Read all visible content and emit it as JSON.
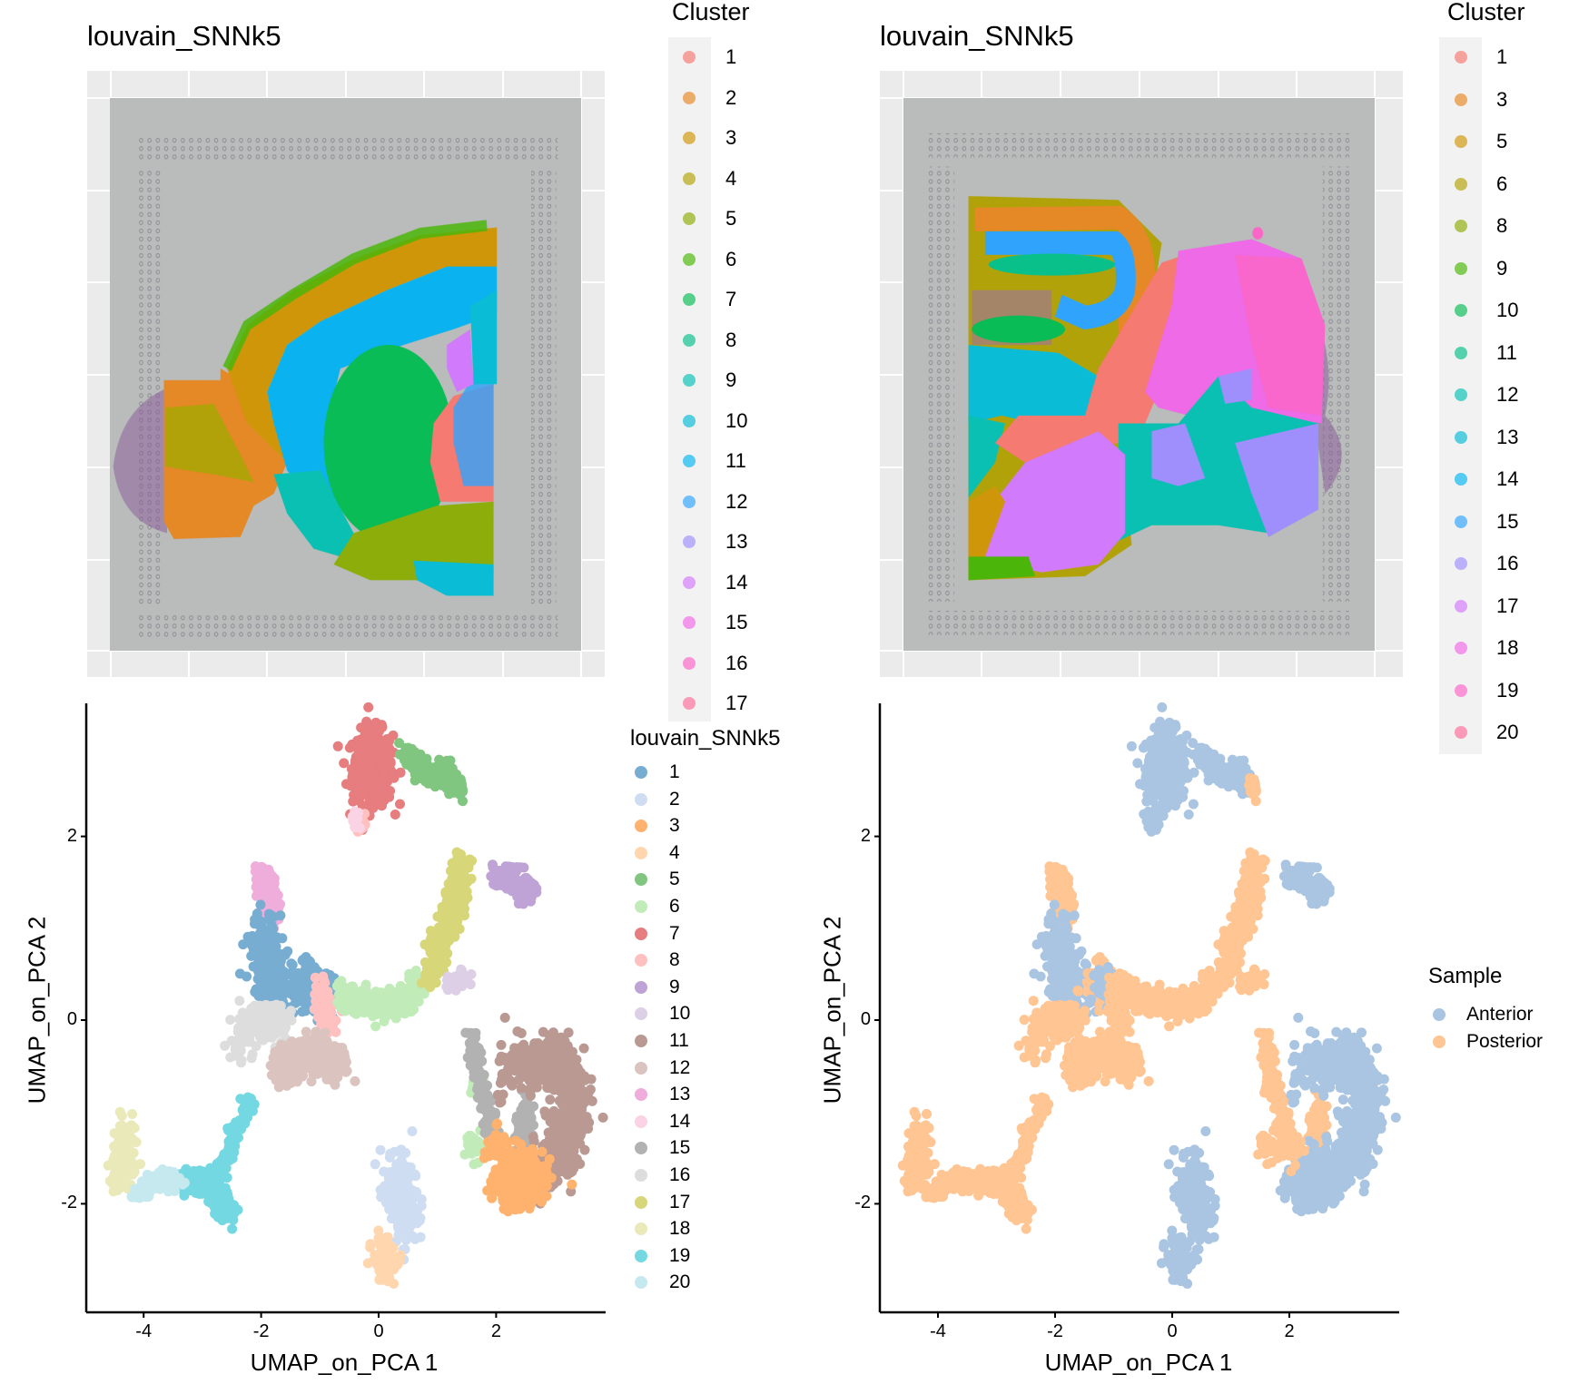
{
  "spatial": [
    {
      "title": "louvain_SNNk5",
      "legend_title": "Cluster",
      "legend_labels": [
        "1",
        "2",
        "3",
        "4",
        "5",
        "6",
        "7",
        "8",
        "9",
        "10",
        "11",
        "12",
        "13",
        "14",
        "15",
        "16",
        "17"
      ]
    },
    {
      "title": "louvain_SNNk5",
      "legend_title": "Cluster",
      "legend_labels": [
        "1",
        "3",
        "5",
        "6",
        "8",
        "9",
        "10",
        "11",
        "12",
        "13",
        "14",
        "15",
        "16",
        "17",
        "18",
        "19",
        "20"
      ]
    }
  ],
  "spatial_palette": [
    "#F8766D",
    "#E7851E",
    "#D09400",
    "#B2A100",
    "#89AC00",
    "#45B500",
    "#00BC51",
    "#00C087",
    "#00C0B2",
    "#00BCD6",
    "#00B3F2",
    "#29A3FF",
    "#9C8DFF",
    "#D277FF",
    "#F166E8",
    "#FF61C7",
    "#FF6A98"
  ],
  "chart_data": [
    {
      "type": "scatter",
      "xlabel": "UMAP_on_PCA 1",
      "ylabel": "UMAP_on_PCA 2",
      "xlim": [
        -4.98,
        3.86
      ],
      "ylim": [
        -3.18,
        3.45
      ],
      "xticks": [
        "-4",
        "-2",
        "0",
        "2"
      ],
      "xtick_values": [
        -4,
        -2,
        0,
        2
      ],
      "yticks": [
        "2",
        "0",
        "-2"
      ],
      "ytick_values": [
        2,
        0,
        -2
      ],
      "color_by": "cluster",
      "legend_title": "louvain_SNNk5",
      "legend_placement": "right",
      "legend_labels": [
        "1",
        "2",
        "3",
        "4",
        "5",
        "6",
        "7",
        "8",
        "9",
        "10",
        "11",
        "12",
        "13",
        "14",
        "15",
        "16",
        "17",
        "18",
        "19",
        "20"
      ],
      "colors": [
        "#1f77b4",
        "#aec7e8",
        "#ff7f0e",
        "#ffbb78",
        "#2ca02c",
        "#98df8a",
        "#d62728",
        "#ff9896",
        "#9467bd",
        "#c5b0d5",
        "#8c564b",
        "#c49c94",
        "#e377c2",
        "#f7b6d2",
        "#7f7f7f",
        "#c7c7c7",
        "#bcbd22",
        "#dbdb8d",
        "#17becf",
        "#9edae5"
      ]
    },
    {
      "type": "scatter",
      "xlabel": "UMAP_on_PCA 1",
      "ylabel": "UMAP_on_PCA 2",
      "xlim": [
        -4.98,
        3.86
      ],
      "ylim": [
        -3.18,
        3.45
      ],
      "xticks": [
        "-4",
        "-2",
        "0",
        "2"
      ],
      "xtick_values": [
        -4,
        -2,
        0,
        2
      ],
      "yticks": [
        "2",
        "0",
        "-2"
      ],
      "ytick_values": [
        2,
        0,
        -2
      ],
      "color_by": "sample",
      "legend_title": "Sample",
      "legend_placement": "right",
      "legend_labels": [
        "Anterior",
        "Posterior"
      ],
      "colors": [
        "#729ECE",
        "#FF9E4A"
      ]
    }
  ],
  "clusters": [
    {
      "cluster": 7,
      "sample": "Anterior",
      "path": [
        [
          -0.1,
          2.75
        ]
      ],
      "spread": [
        0.17,
        0.2
      ],
      "n": 450
    },
    {
      "cluster": 5,
      "sample": "Anterior",
      "path": [
        [
          0.45,
          2.95
        ],
        [
          0.7,
          2.7
        ],
        [
          1.1,
          2.7
        ],
        [
          1.35,
          2.55
        ]
      ],
      "spread": [
        0.06,
        0.06
      ],
      "n": 220
    },
    {
      "cluster": 5,
      "sample": "Posterior",
      "path": [
        [
          1.35,
          2.6
        ],
        [
          1.4,
          2.45
        ]
      ],
      "spread": [
        0.03,
        0.04
      ],
      "n": 25
    },
    {
      "cluster": 8,
      "sample": "Anterior",
      "path": [
        [
          -0.3,
          2.15
        ]
      ],
      "spread": [
        0.05,
        0.05
      ],
      "n": 20
    },
    {
      "cluster": 14,
      "sample": "Anterior",
      "path": [
        [
          -0.4,
          2.2
        ]
      ],
      "spread": [
        0.04,
        0.05
      ],
      "n": 15
    },
    {
      "cluster": 13,
      "sample": "Posterior",
      "path": [
        [
          -2.0,
          1.65
        ],
        [
          -1.85,
          1.3
        ],
        [
          -1.8,
          1.1
        ]
      ],
      "spread": [
        0.07,
        0.07
      ],
      "n": 150
    },
    {
      "cluster": 1,
      "sample": "Anterior",
      "path": [
        [
          -1.95,
          0.95
        ],
        [
          -1.9,
          0.5
        ],
        [
          -1.6,
          0.3
        ]
      ],
      "spread": [
        0.15,
        0.15
      ],
      "n": 250
    },
    {
      "cluster": 1,
      "sample": "Posterior",
      "path": [
        [
          -1.4,
          0.5
        ],
        [
          -1.1,
          0.3
        ],
        [
          -0.7,
          0.3
        ]
      ],
      "spread": [
        0.12,
        0.12
      ],
      "n": 150
    },
    {
      "cluster": 1,
      "sample": "Anterior",
      "path": [
        [
          -1.15,
          0.4
        ]
      ],
      "spread": [
        0.1,
        0.1
      ],
      "n": 60
    },
    {
      "cluster": 16,
      "sample": "Posterior",
      "path": [
        [
          -2.4,
          -0.25
        ],
        [
          -2.0,
          0.0
        ],
        [
          -1.7,
          0.0
        ]
      ],
      "spread": [
        0.13,
        0.1
      ],
      "n": 220
    },
    {
      "cluster": 8,
      "sample": "Posterior",
      "path": [
        [
          -1.0,
          0.3
        ],
        [
          -0.85,
          -0.1
        ]
      ],
      "spread": [
        0.08,
        0.1
      ],
      "n": 80
    },
    {
      "cluster": 12,
      "sample": "Posterior",
      "path": [
        [
          -1.7,
          -0.55
        ],
        [
          -1.2,
          -0.35
        ],
        [
          -0.6,
          -0.5
        ]
      ],
      "spread": [
        0.12,
        0.1
      ],
      "n": 260
    },
    {
      "cluster": 6,
      "sample": "Posterior",
      "path": [
        [
          -0.6,
          0.25
        ],
        [
          0.0,
          0.15
        ],
        [
          0.4,
          0.2
        ],
        [
          0.7,
          0.45
        ]
      ],
      "spread": [
        0.1,
        0.08
      ],
      "n": 250
    },
    {
      "cluster": 6,
      "sample": "Posterior",
      "path": [
        [
          1.7,
          -0.75
        ]
      ],
      "spread": [
        0.06,
        0.08
      ],
      "n": 25
    },
    {
      "cluster": 6,
      "sample": "Posterior",
      "path": [
        [
          1.65,
          -1.35
        ]
      ],
      "spread": [
        0.08,
        0.08
      ],
      "n": 40
    },
    {
      "cluster": 2,
      "sample": "Anterior",
      "path": [
        [
          0.3,
          -1.6
        ],
        [
          0.4,
          -1.9
        ],
        [
          0.45,
          -2.3
        ]
      ],
      "spread": [
        0.12,
        0.12
      ],
      "n": 220
    },
    {
      "cluster": 4,
      "sample": "Anterior",
      "path": [
        [
          0.1,
          -2.6
        ]
      ],
      "spread": [
        0.1,
        0.12
      ],
      "n": 100
    },
    {
      "cluster": 17,
      "sample": "Posterior",
      "path": [
        [
          0.9,
          0.5
        ],
        [
          1.1,
          0.9
        ],
        [
          1.3,
          1.35
        ],
        [
          1.45,
          1.7
        ]
      ],
      "spread": [
        0.09,
        0.09
      ],
      "n": 300
    },
    {
      "cluster": 9,
      "sample": "Anterior",
      "path": [
        [
          2.0,
          1.6
        ],
        [
          2.3,
          1.5
        ],
        [
          2.6,
          1.4
        ]
      ],
      "spread": [
        0.1,
        0.08
      ],
      "n": 110
    },
    {
      "cluster": 10,
      "sample": "Posterior",
      "path": [
        [
          1.2,
          0.4
        ],
        [
          1.45,
          0.45
        ]
      ],
      "spread": [
        0.07,
        0.05
      ],
      "n": 40
    },
    {
      "cluster": 15,
      "sample": "Posterior",
      "path": [
        [
          1.55,
          -0.1
        ],
        [
          1.7,
          -0.6
        ],
        [
          1.85,
          -1.0
        ],
        [
          2.0,
          -1.4
        ]
      ],
      "spread": [
        0.05,
        0.07
      ],
      "n": 120
    },
    {
      "cluster": 15,
      "sample": "Posterior",
      "path": [
        [
          2.55,
          -0.95
        ],
        [
          2.4,
          -1.35
        ]
      ],
      "spread": [
        0.07,
        0.1
      ],
      "n": 80
    },
    {
      "cluster": 11,
      "sample": "Anterior",
      "path": [
        [
          2.2,
          -0.55
        ],
        [
          2.8,
          -0.45
        ],
        [
          3.2,
          -0.55
        ],
        [
          3.3,
          -1.0
        ],
        [
          3.2,
          -1.4
        ],
        [
          2.7,
          -1.65
        ]
      ],
      "spread": [
        0.15,
        0.15
      ],
      "n": 650
    },
    {
      "cluster": 3,
      "sample": "Anterior",
      "path": [
        [
          2.25,
          -1.85
        ],
        [
          2.55,
          -1.65
        ]
      ],
      "spread": [
        0.18,
        0.13
      ],
      "n": 400
    },
    {
      "cluster": 3,
      "sample": "Posterior",
      "path": [
        [
          2.0,
          -1.4
        ]
      ],
      "spread": [
        0.1,
        0.1
      ],
      "n": 40
    },
    {
      "cluster": 19,
      "sample": "Posterior",
      "path": [
        [
          -2.2,
          -0.85
        ],
        [
          -2.5,
          -1.35
        ],
        [
          -2.8,
          -1.75
        ]
      ],
      "spread": [
        0.05,
        0.05
      ],
      "n": 130
    },
    {
      "cluster": 19,
      "sample": "Posterior",
      "path": [
        [
          -3.4,
          -1.75
        ],
        [
          -2.8,
          -1.8
        ],
        [
          -2.55,
          -2.1
        ]
      ],
      "spread": [
        0.08,
        0.07
      ],
      "n": 200
    },
    {
      "cluster": 18,
      "sample": "Posterior",
      "path": [
        [
          -4.3,
          -1.2
        ],
        [
          -4.35,
          -1.55
        ],
        [
          -4.4,
          -1.65
        ]
      ],
      "spread": [
        0.09,
        0.12
      ],
      "n": 160
    },
    {
      "cluster": 20,
      "sample": "Posterior",
      "path": [
        [
          -4.1,
          -1.85
        ],
        [
          -3.7,
          -1.75
        ],
        [
          -3.4,
          -1.75
        ]
      ],
      "spread": [
        0.07,
        0.06
      ],
      "n": 120
    }
  ]
}
